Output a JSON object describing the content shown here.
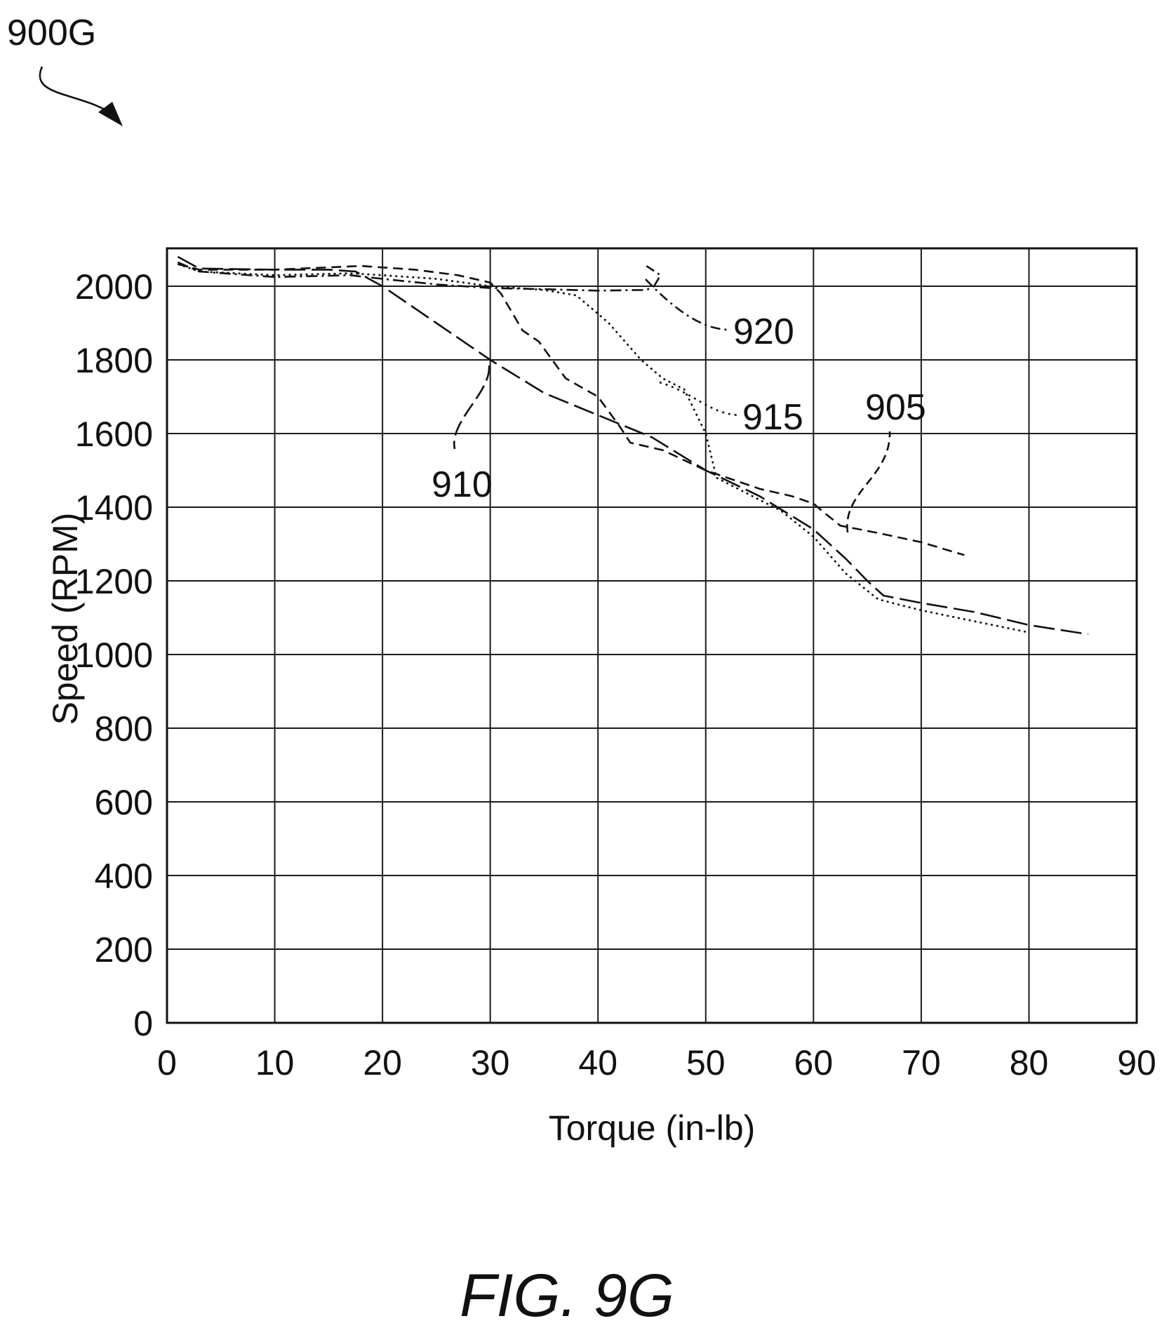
{
  "figure": {
    "ref_label": "900G",
    "caption": "FIG. 9G"
  },
  "chart_data": {
    "type": "line",
    "xlabel": "Torque (in-lb)",
    "ylabel": "Speed (RPM)",
    "xlim": [
      0,
      90
    ],
    "ylim": [
      0,
      2100
    ],
    "xticks": [
      0,
      10,
      20,
      30,
      40,
      50,
      60,
      70,
      80,
      90
    ],
    "yticks": [
      0,
      200,
      400,
      600,
      800,
      1000,
      1200,
      1400,
      1600,
      1800,
      2000
    ],
    "grid": true,
    "series": [
      {
        "name": "905",
        "dash": "dashed",
        "x": [
          1,
          3,
          10,
          18,
          23,
          27,
          30,
          31,
          33,
          34.5,
          37,
          40,
          42,
          43,
          46,
          50,
          55,
          58,
          60,
          61,
          62.5,
          66,
          70,
          74
        ],
        "y": [
          2060,
          2045,
          2045,
          2055,
          2045,
          2030,
          2010,
          1980,
          1880,
          1850,
          1750,
          1700,
          1620,
          1575,
          1555,
          1500,
          1450,
          1430,
          1410,
          1385,
          1350,
          1330,
          1305,
          1270
        ]
      },
      {
        "name": "910",
        "dash": "longdash",
        "x": [
          1,
          3,
          10,
          15,
          17.5,
          20,
          25,
          30,
          35,
          40,
          45,
          50,
          55,
          60,
          63,
          65,
          66.5,
          70,
          75,
          80,
          85.5
        ],
        "y": [
          2080,
          2048,
          2045,
          2045,
          2040,
          2000,
          1900,
          1800,
          1710,
          1650,
          1590,
          1500,
          1430,
          1340,
          1260,
          1200,
          1160,
          1140,
          1115,
          1080,
          1055
        ]
      },
      {
        "name": "915",
        "dash": "dotted",
        "x": [
          1,
          3,
          10,
          17,
          20,
          25,
          30,
          35,
          38,
          41,
          44,
          46,
          48,
          50,
          51,
          53,
          57,
          60,
          63,
          66,
          70,
          75,
          80
        ],
        "y": [
          2060,
          2040,
          2030,
          2035,
          2030,
          2020,
          2000,
          1990,
          1975,
          1900,
          1800,
          1750,
          1720,
          1600,
          1480,
          1450,
          1390,
          1320,
          1220,
          1150,
          1120,
          1090,
          1060
        ]
      },
      {
        "name": "920",
        "dash": "dashdot",
        "x": [
          1,
          3,
          10,
          17,
          20,
          25,
          30,
          35,
          40,
          44.5,
          45.2,
          45.8,
          44.5
        ],
        "y": [
          2065,
          2040,
          2025,
          2030,
          2020,
          2005,
          1995,
          1992,
          1988,
          1990,
          2000,
          2030,
          2055
        ]
      }
    ]
  },
  "callouts": [
    {
      "label": "920"
    },
    {
      "label": "915"
    },
    {
      "label": "905"
    },
    {
      "label": "910"
    }
  ]
}
